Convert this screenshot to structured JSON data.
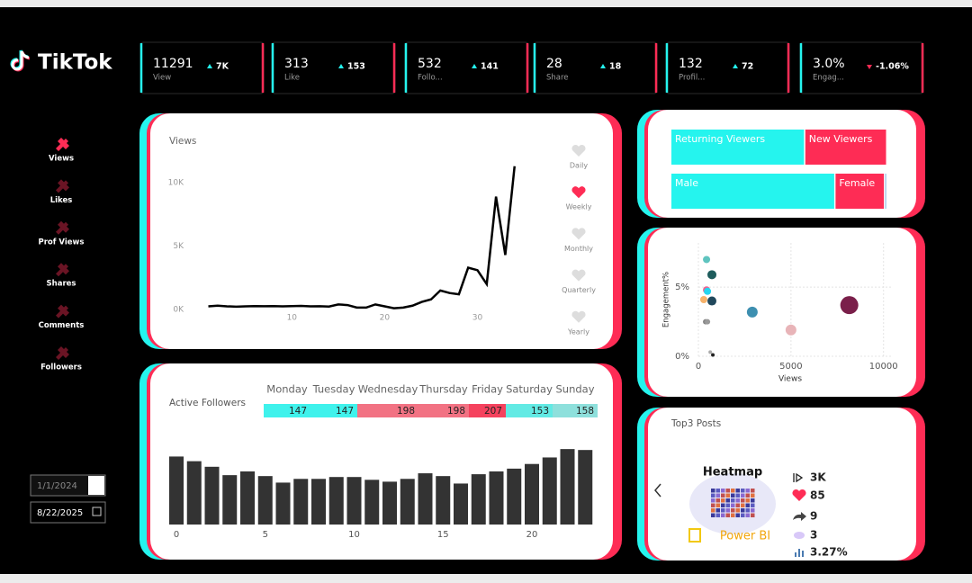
{
  "logo": "TikTok",
  "kpis": [
    {
      "value": 11291,
      "label": "View",
      "change": "7K",
      "direction": "up"
    },
    {
      "value": 313,
      "label": "Like",
      "change": 153,
      "direction": "up"
    },
    {
      "value": 532,
      "label": "Follo...",
      "change": 141,
      "direction": "up"
    },
    {
      "value": 28,
      "label": "Share",
      "change": 18,
      "direction": "up"
    },
    {
      "value": 132,
      "label": "Profil...",
      "change": 72,
      "direction": "up"
    },
    {
      "value": "3.0%",
      "label": "Engag...",
      "change": "-1.06%",
      "direction": "down"
    }
  ],
  "nav": {
    "items": [
      "Views",
      "Likes",
      "Prof Views",
      "Shares",
      "Comments",
      "Followers"
    ],
    "active": 0
  },
  "views_chart": {
    "title": "Views",
    "x": [
      1,
      2,
      3,
      4,
      5,
      6,
      7,
      8,
      9,
      10,
      11,
      12,
      13,
      14,
      15,
      16,
      17,
      18,
      19,
      20,
      21,
      22,
      23,
      24,
      25,
      26,
      27,
      28,
      29,
      30,
      31,
      32,
      33,
      34
    ],
    "values": [
      250,
      300,
      250,
      220,
      250,
      270,
      260,
      270,
      250,
      270,
      280,
      250,
      260,
      230,
      400,
      350,
      150,
      150,
      400,
      250,
      100,
      150,
      300,
      600,
      800,
      1500,
      1300,
      1200,
      3300,
      3100,
      2000,
      8900,
      4300,
      11300
    ],
    "xlim": [
      -0.6,
      34.8
    ],
    "ylim": [
      0,
      12700
    ],
    "xticks": [
      10,
      20,
      30
    ],
    "yticks": [
      {
        "value": 0,
        "label": "0K"
      },
      {
        "value": 5000,
        "label": "5K"
      },
      {
        "value": 10000,
        "label": "10K"
      }
    ],
    "color": "#000000"
  },
  "period": {
    "options": [
      "Daily",
      "Weekly",
      "Monthly",
      "Quarterly",
      "Yearly"
    ],
    "selected": 1
  },
  "active_followers": {
    "title": "Active Followers",
    "days": [
      "Monday",
      "Tuesday",
      "Wednesday",
      "Thursday",
      "Friday",
      "Saturday",
      "Sunday"
    ],
    "day_values": [
      147,
      147,
      198,
      198,
      207,
      153,
      158
    ],
    "day_colors": [
      "#3ff2ec",
      "#3ff2ec",
      "#f27283",
      "#f27283",
      "#f5425e",
      "#62eae4",
      "#8ee0dc"
    ],
    "hours": [
      0,
      1,
      2,
      3,
      4,
      5,
      6,
      7,
      8,
      9,
      10,
      11,
      12,
      13,
      14,
      15,
      16,
      17,
      18,
      19,
      20,
      21,
      22,
      23
    ],
    "values": [
      73,
      68,
      62,
      53,
      57,
      52,
      45,
      49,
      49,
      51,
      51,
      48,
      46,
      49,
      55,
      52,
      44,
      54,
      57,
      60,
      65,
      72,
      81,
      80
    ],
    "xticks": [
      0,
      5,
      10,
      15,
      20
    ],
    "ylim": [
      0,
      85
    ],
    "color": "#333333"
  },
  "audience": [
    {
      "categories": [
        "Returning Viewers",
        "New Viewers"
      ],
      "values": [
        62,
        38
      ]
    },
    {
      "categories": [
        "Male",
        "Female",
        null
      ],
      "values": [
        76,
        23,
        1
      ]
    }
  ],
  "audience_colors": [
    "#25f4ee",
    "#fe2c55",
    "#6fa8dc"
  ],
  "engagement_chart": {
    "x_label": "Views",
    "y_label": "Engagement%",
    "x": [
      440,
      730,
      440,
      490,
      290,
      730,
      390,
      490,
      2910,
      5000,
      8150,
      640,
      780
    ],
    "values": [
      7.0,
      5.9,
      4.8,
      4.7,
      4.1,
      4.0,
      2.5,
      2.5,
      3.2,
      1.9,
      3.7,
      0.3,
      0.1
    ],
    "sizes": [
      4,
      5,
      4,
      4,
      4,
      5,
      3,
      3,
      6,
      6,
      10,
      2,
      2
    ],
    "colors": [
      "#5fc4bf",
      "#1e5c5c",
      "#f06292",
      "#25d5f0",
      "#f6b26b",
      "#21485c",
      "#888888",
      "#999999",
      "#3d8fb0",
      "#e8b4b8",
      "#7a1f4a",
      "#aaaaaa",
      "#222222"
    ],
    "xlim": [
      0,
      10500
    ],
    "ylim": [
      0,
      8.2
    ],
    "xticks": [
      0,
      5000,
      10000
    ],
    "yticks": [
      {
        "value": 0,
        "label": "0%"
      },
      {
        "value": 5,
        "label": "5%"
      }
    ]
  },
  "top_posts": {
    "title": "Top3 Posts",
    "image_title": "Heatmap",
    "image_brand": "Power BI",
    "views": "3K",
    "likes": 85,
    "shares": 9,
    "comments": 3,
    "engagement": "3.27%"
  },
  "date_range": {
    "start": "1/1/2024",
    "end": "8/22/2025"
  }
}
